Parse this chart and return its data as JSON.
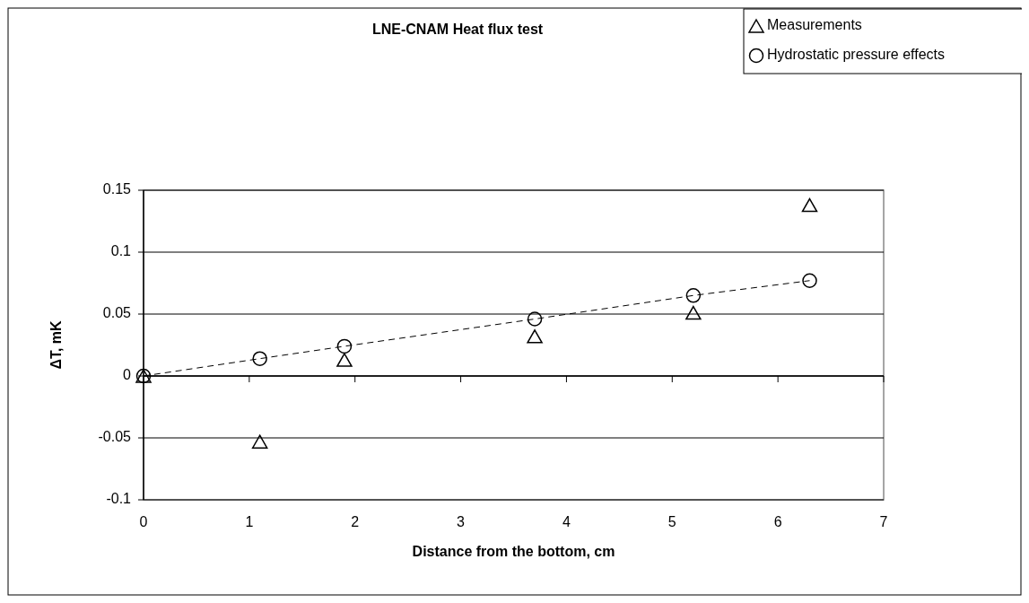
{
  "chart_data": {
    "type": "scatter",
    "title": "LNE-CNAM Heat flux test",
    "xlabel": "Distance from the bottom, cm",
    "ylabel": "ΔT, mK",
    "xlim": [
      0,
      7
    ],
    "xticks": [
      0,
      1,
      2,
      3,
      4,
      5,
      6,
      7
    ],
    "ylim": [
      -0.1,
      0.15
    ],
    "yticks": [
      -0.1,
      -0.05,
      0,
      0.05,
      0.1,
      0.15
    ],
    "grid": "y",
    "legend": "top right",
    "series": [
      {
        "name": "Measurements",
        "color": "#000000",
        "marker": "triangle",
        "x": [
          0,
          1.1,
          1.9,
          3.7,
          5.2,
          6.3
        ],
        "values": [
          0,
          -0.053,
          0.013,
          0.032,
          0.051,
          0.138
        ]
      },
      {
        "name": "Hydrostatic pressure effects",
        "type": "line",
        "color": "#000000",
        "marker": "circle",
        "line_style": "dashed",
        "x": [
          0,
          1.1,
          1.9,
          3.7,
          5.2,
          6.3
        ],
        "values": [
          0,
          0.014,
          0.024,
          0.046,
          0.065,
          0.077
        ]
      }
    ]
  }
}
